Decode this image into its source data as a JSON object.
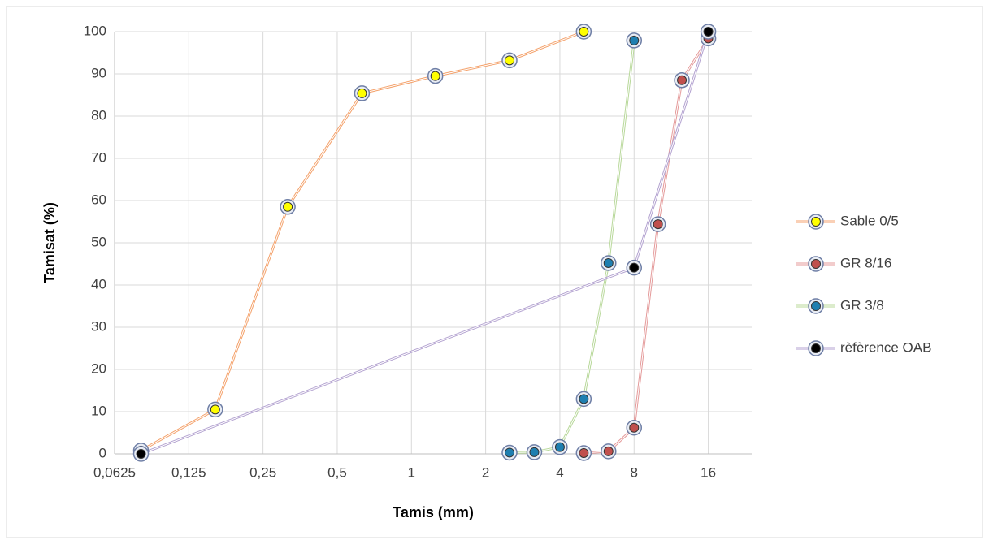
{
  "chart_data": {
    "type": "line",
    "log_x_base": 2,
    "x_axis_label": "Tamis (mm)",
    "y_axis_label": "Tamisat (%)",
    "xlim": [
      0.0625,
      24
    ],
    "ylim": [
      0,
      100
    ],
    "xticks": [
      {
        "value": 0.0625,
        "label": "0,0625"
      },
      {
        "value": 0.125,
        "label": "0,125"
      },
      {
        "value": 0.25,
        "label": "0,25"
      },
      {
        "value": 0.5,
        "label": "0,5"
      },
      1,
      2,
      4,
      8,
      16
    ],
    "yticks": [
      0,
      10,
      20,
      30,
      40,
      50,
      60,
      70,
      80,
      90,
      100
    ],
    "grid": true,
    "legend": "right",
    "series": [
      {
        "name": "Sable 0/5",
        "color": "#f4a26c",
        "marker_color": "#ffff00",
        "x": [
          0.08,
          0.16,
          0.315,
          0.63,
          1.25,
          2.5,
          5
        ],
        "values": [
          0.8,
          10.5,
          58.5,
          85.4,
          89.5,
          93.2,
          100
        ]
      },
      {
        "name": "GR 8/16",
        "color": "#e49a9a",
        "marker_color": "#c0504d",
        "x": [
          5,
          6.3,
          8,
          10,
          12.5,
          16
        ],
        "values": [
          0.2,
          0.6,
          6.2,
          54.4,
          88.5,
          98.4
        ]
      },
      {
        "name": "GR 3/8",
        "color": "#b8d89a",
        "marker_color": "#1f7fb0",
        "x": [
          2.5,
          3.15,
          4,
          5,
          6.3,
          8
        ],
        "values": [
          0.3,
          0.4,
          1.6,
          13,
          45.2,
          97.9
        ]
      },
      {
        "name": "rèfèrence OAB",
        "color": "#b3a2d0",
        "marker_color": "#000000",
        "x": [
          0.08,
          8,
          16
        ],
        "values": [
          0,
          44.1,
          100
        ]
      }
    ]
  }
}
